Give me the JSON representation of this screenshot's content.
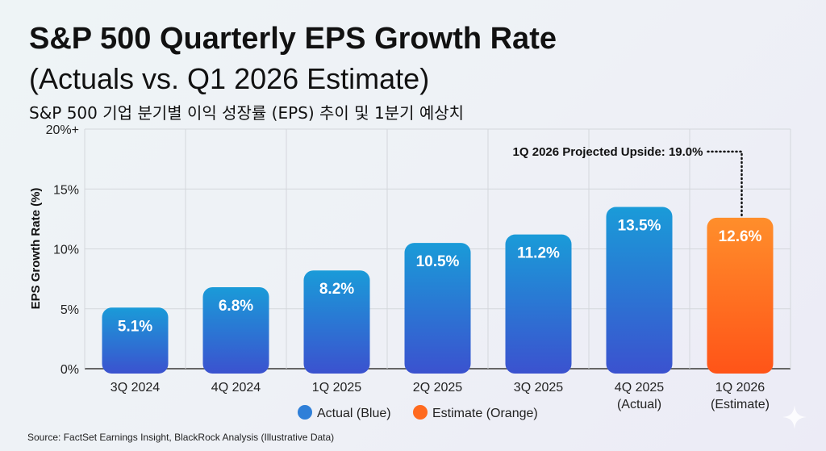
{
  "header": {
    "title_line1": "S&P 500 Quarterly EPS Growth Rate",
    "title_line2": "(Actuals vs. Q1 2026 Estimate)",
    "subtitle": "S&P 500 기업 분기별 이익 성장률 (EPS) 추이 및 1분기 예상치"
  },
  "chart_data": {
    "type": "bar",
    "title": "S&P 500 Quarterly EPS Growth Rate (Actuals vs. Q1 2026 Estimate)",
    "xlabel": "",
    "ylabel": "EPS Growth Rate (%)",
    "ylim": [
      0,
      20
    ],
    "yticks": [
      {
        "value": 0,
        "label": "0%"
      },
      {
        "value": 5,
        "label": "5%"
      },
      {
        "value": 10,
        "label": "10%"
      },
      {
        "value": 15,
        "label": "15%"
      },
      {
        "value": 20,
        "label": "20%+"
      }
    ],
    "grid": true,
    "categories": [
      [
        "3Q 2024"
      ],
      [
        "4Q 2024"
      ],
      [
        "1Q 2025"
      ],
      [
        "2Q 2025"
      ],
      [
        "3Q 2025"
      ],
      [
        "4Q 2025",
        "(Actual)"
      ],
      [
        "1Q 2026",
        "(Estimate)"
      ]
    ],
    "values": [
      5.1,
      6.8,
      8.2,
      10.5,
      11.2,
      13.5,
      12.6
    ],
    "value_labels": [
      "5.1%",
      "6.8%",
      "8.2%",
      "10.5%",
      "11.2%",
      "13.5%",
      "12.6%"
    ],
    "series_type": [
      "actual",
      "actual",
      "actual",
      "actual",
      "actual",
      "actual",
      "estimate"
    ],
    "annotation": {
      "text": "1Q 2026 Projected Upside: 19.0%",
      "value": 19.0,
      "category_index": 6
    },
    "legend": {
      "position": "bottom",
      "entries": [
        {
          "label": "Actual (Blue)",
          "color": "#2f7fd8"
        },
        {
          "label": "Estimate (Orange)",
          "color": "#ff6a1f"
        }
      ]
    },
    "colors": {
      "actual_top": "#1a9bd8",
      "actual_bottom": "#3b52cf",
      "estimate_top": "#ff8e2b",
      "estimate_bottom": "#ff5418"
    }
  },
  "footer": {
    "source": "Source: FactSet Earnings Insight, BlackRock Analysis (Illustrative Data)"
  }
}
